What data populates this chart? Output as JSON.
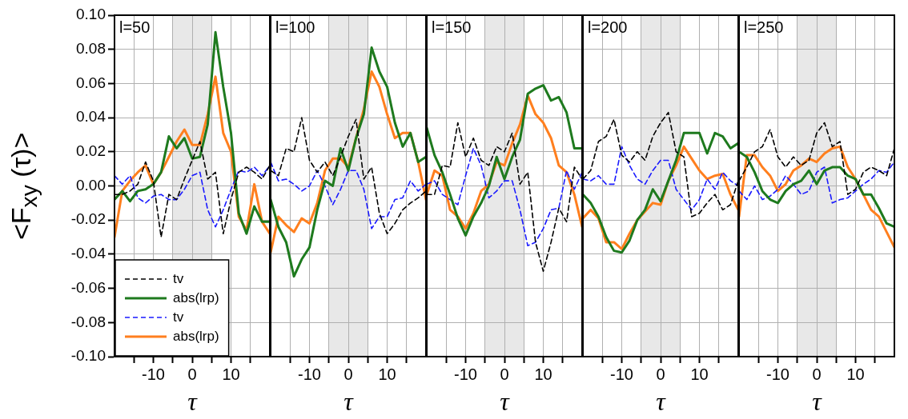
{
  "chart_data": [
    {
      "type": "line",
      "title": "l=50",
      "xlabel": "τ",
      "ylabel": "<F$_{xy}$ (τ)>",
      "xlim": [
        -20,
        20
      ],
      "xticks": [
        {
          "value": -15,
          "label": null
        },
        -10,
        {
          "value": -5,
          "label": null
        },
        0,
        {
          "value": 5,
          "label": null
        },
        10,
        {
          "value": 15,
          "label": null
        }
      ],
      "ylim": [
        -0.1,
        0.1
      ],
      "yticks": [
        {
          "value": -0.1,
          "label": "-0.10"
        },
        {
          "value": -0.08,
          "label": "-0.08"
        },
        {
          "value": -0.06,
          "label": "-0.06"
        },
        {
          "value": -0.04,
          "label": "-0.04"
        },
        {
          "value": -0.02,
          "label": "-0.02"
        },
        {
          "value": 0,
          "label": "0.00"
        },
        {
          "value": 0.02,
          "label": "0.02"
        },
        {
          "value": 0.04,
          "label": "0.04"
        },
        {
          "value": 0.06,
          "label": "0.06"
        },
        {
          "value": 0.08,
          "label": "0.08"
        },
        {
          "value": 0.1,
          "label": "0.10"
        }
      ],
      "grid": true,
      "legend": "bottom left",
      "bands": [
        {
          "axis": "x",
          "from": -5,
          "to": 5,
          "color": "#e8e8e8"
        }
      ],
      "x": [
        -20,
        -18,
        -16,
        -14,
        -12,
        -10,
        -8,
        -6,
        -4,
        -2,
        0,
        2,
        4,
        6,
        8,
        10,
        12,
        14,
        16,
        18,
        20
      ],
      "series": [
        {
          "name": "tv",
          "color": "#000000",
          "line_style": "dashed",
          "values": [
            -0.005,
            -0.005,
            -0.003,
            0.001,
            0.014,
            0.003,
            -0.03,
            -0.005,
            -0.008,
            0.004,
            0.015,
            0.026,
            0.004,
            0.008,
            -0.028,
            -0.008,
            0.008,
            0.011,
            0.008,
            0.004,
            0.012
          ]
        },
        {
          "name": "abs(lrp)",
          "color": "#1e7a1e",
          "line_style": "solid",
          "values": [
            -0.008,
            -0.003,
            -0.009,
            -0.003,
            -0.002,
            0.001,
            0.008,
            0.029,
            0.022,
            0.028,
            0.016,
            0.017,
            0.036,
            0.09,
            0.058,
            0.031,
            -0.016,
            -0.028,
            -0.012,
            -0.021,
            -0.021
          ]
        },
        {
          "name": "tv",
          "color": "#1a1aff",
          "line_style": "dashed",
          "values": [
            0.006,
            0.001,
            0.006,
            -0.007,
            -0.01,
            -0.006,
            -0.005,
            -0.008,
            -0.008,
            -0.002,
            0.006,
            0.008,
            -0.014,
            -0.024,
            -0.014,
            -0.002,
            0.009,
            0.008,
            0.011,
            0.006,
            0.012
          ]
        },
        {
          "name": "abs(lrp)",
          "color": "#ff7f1e",
          "line_style": "solid",
          "values": [
            -0.03,
            -0.003,
            0.003,
            0.008,
            0.012,
            0.001,
            0.008,
            0.017,
            0.026,
            0.033,
            0.024,
            0.024,
            0.042,
            0.064,
            0.031,
            0.02,
            -0.018,
            -0.026,
            0.001,
            -0.021,
            -0.028
          ]
        }
      ]
    },
    {
      "type": "line",
      "title": "l=100",
      "xlabel": "τ",
      "xlim": [
        -20,
        20
      ],
      "xticks": [
        {
          "value": -15,
          "label": null
        },
        -10,
        {
          "value": -5,
          "label": null
        },
        0,
        {
          "value": 5,
          "label": null
        },
        10,
        {
          "value": 15,
          "label": null
        }
      ],
      "ylim": [
        -0.1,
        0.1
      ],
      "yticks": [
        -0.1,
        -0.08,
        -0.06,
        -0.04,
        -0.02,
        0,
        0.02,
        0.04,
        0.06,
        0.08,
        0.1
      ],
      "tick_labels": "x",
      "grid": true,
      "bands": [
        {
          "axis": "x",
          "from": -5,
          "to": 5,
          "color": "#e8e8e8"
        }
      ],
      "x": [
        -20,
        -18,
        -16,
        -14,
        -12,
        -10,
        -8,
        -6,
        -4,
        -2,
        0,
        2,
        4,
        6,
        8,
        10,
        12,
        14,
        16,
        18,
        20
      ],
      "series": [
        {
          "color": "#000000",
          "line_style": "dashed",
          "values": [
            0.009,
            0.006,
            0.022,
            0.02,
            0.04,
            0.015,
            0.008,
            0.014,
            0.006,
            0.017,
            0.029,
            0.039,
            0.004,
            0.011,
            -0.016,
            -0.028,
            -0.022,
            -0.014,
            -0.01,
            -0.007,
            -0.003
          ]
        },
        {
          "color": "#1e7a1e",
          "line_style": "solid",
          "values": [
            -0.008,
            -0.024,
            -0.033,
            -0.053,
            -0.043,
            -0.036,
            -0.014,
            0.003,
            0,
            0.022,
            0.009,
            0.028,
            0.042,
            0.081,
            0.067,
            0.058,
            0.037,
            0.023,
            0.031,
            0.014,
            0.017
          ]
        },
        {
          "color": "#1a1aff",
          "line_style": "dashed",
          "values": [
            0.014,
            0.003,
            0.004,
            0.001,
            -0.003,
            0,
            0.009,
            0,
            -0.011,
            -0.002,
            0.009,
            0.009,
            -0.002,
            -0.025,
            -0.018,
            -0.018,
            -0.008,
            -0.007,
            0.003,
            -0.003,
            0.001
          ]
        },
        {
          "color": "#ff7f1e",
          "line_style": "solid",
          "values": [
            -0.039,
            -0.018,
            -0.023,
            -0.027,
            -0.019,
            -0.022,
            -0.01,
            0.009,
            0.016,
            0.016,
            0.011,
            0.028,
            0.045,
            0.067,
            0.058,
            0.042,
            0.028,
            0.031,
            0.031,
            0.014,
            -0.008
          ]
        }
      ]
    },
    {
      "type": "line",
      "title": "l=150",
      "xlabel": "τ",
      "xlim": [
        -20,
        20
      ],
      "xticks": [
        {
          "value": -15,
          "label": null
        },
        -10,
        {
          "value": -5,
          "label": null
        },
        0,
        {
          "value": 5,
          "label": null
        },
        10,
        {
          "value": 15,
          "label": null
        }
      ],
      "ylim": [
        -0.1,
        0.1
      ],
      "yticks": [
        -0.1,
        -0.08,
        -0.06,
        -0.04,
        -0.02,
        0,
        0.02,
        0.04,
        0.06,
        0.08,
        0.1
      ],
      "tick_labels": "x",
      "grid": true,
      "bands": [
        {
          "axis": "x",
          "from": -5,
          "to": 5,
          "color": "#e8e8e8"
        }
      ],
      "x": [
        -20,
        -18,
        -16,
        -14,
        -12,
        -10,
        -8,
        -6,
        -4,
        -2,
        0,
        2,
        4,
        6,
        8,
        10,
        12,
        14,
        16,
        18,
        20
      ],
      "series": [
        {
          "color": "#000000",
          "line_style": "dashed",
          "values": [
            -0.005,
            -0.005,
            0.012,
            0.011,
            0.037,
            0.017,
            0.028,
            0.015,
            0.012,
            0.023,
            0.02,
            0.031,
            0.001,
            0.008,
            -0.033,
            -0.05,
            -0.033,
            -0.013,
            -0.021,
            0.011,
            0.004
          ]
        },
        {
          "color": "#1e7a1e",
          "line_style": "solid",
          "values": [
            0.034,
            0.018,
            0.008,
            -0.005,
            -0.019,
            -0.029,
            -0.018,
            -0.01,
            0,
            0.017,
            0.004,
            0.017,
            0.027,
            0.054,
            0.057,
            0.059,
            0.05,
            0.052,
            0.043,
            0.022,
            0.022
          ]
        },
        {
          "color": "#1a1aff",
          "line_style": "dashed",
          "values": [
            0.001,
            0.003,
            -0.005,
            -0.008,
            -0.011,
            0.006,
            0.022,
            0.012,
            -0.007,
            -0.003,
            0.003,
            0.003,
            -0.014,
            -0.035,
            -0.033,
            -0.025,
            -0.014,
            -0.013,
            0.009,
            -0.002,
            0.008
          ]
        },
        {
          "color": "#ff7f1e",
          "line_style": "solid",
          "values": [
            -0.005,
            0.009,
            0.006,
            -0.014,
            -0.018,
            -0.025,
            -0.016,
            -0.003,
            0.001,
            0.014,
            0.012,
            0.025,
            0.036,
            0.053,
            0.042,
            0.037,
            0.028,
            0.012,
            0.008,
            -0.005,
            -0.024
          ]
        }
      ]
    },
    {
      "type": "line",
      "title": "l=200",
      "xlabel": "τ",
      "xlim": [
        -20,
        20
      ],
      "xticks": [
        {
          "value": -15,
          "label": null
        },
        -10,
        {
          "value": -5,
          "label": null
        },
        0,
        {
          "value": 5,
          "label": null
        },
        10,
        {
          "value": 15,
          "label": null
        }
      ],
      "ylim": [
        -0.1,
        0.1
      ],
      "yticks": [
        -0.1,
        -0.08,
        -0.06,
        -0.04,
        -0.02,
        0,
        0.02,
        0.04,
        0.06,
        0.08,
        0.1
      ],
      "tick_labels": "x",
      "grid": true,
      "bands": [
        {
          "axis": "x",
          "from": -5,
          "to": 5,
          "color": "#e8e8e8"
        }
      ],
      "x": [
        -20,
        -18,
        -16,
        -14,
        -12,
        -10,
        -8,
        -6,
        -4,
        -2,
        0,
        2,
        4,
        6,
        8,
        10,
        12,
        14,
        16,
        18,
        20
      ],
      "series": [
        {
          "color": "#000000",
          "line_style": "dashed",
          "values": [
            0.004,
            0.009,
            0.026,
            0.029,
            0.039,
            0.018,
            0.014,
            0.02,
            0.015,
            0.029,
            0.037,
            0.043,
            0.02,
            0.017,
            -0.018,
            -0.016,
            -0.01,
            -0.005,
            -0.014,
            -0.011,
            0.003
          ]
        },
        {
          "color": "#1e7a1e",
          "line_style": "solid",
          "values": [
            -0.005,
            -0.01,
            -0.018,
            -0.03,
            -0.038,
            -0.039,
            -0.032,
            -0.02,
            -0.014,
            -0.002,
            -0.009,
            0.003,
            0.015,
            0.031,
            0.031,
            0.031,
            0.019,
            0.031,
            0.029,
            0.022,
            0.025
          ]
        },
        {
          "color": "#1a1aff",
          "line_style": "dashed",
          "values": [
            0.004,
            0.003,
            0.006,
            0.001,
            0.001,
            0.023,
            0.012,
            0.004,
            0.001,
            0.009,
            0.015,
            0.015,
            -0.002,
            -0.008,
            -0.014,
            -0.008,
            0.004,
            -0.002,
            0.008,
            0.003,
            0
          ]
        },
        {
          "color": "#ff7f1e",
          "line_style": "solid",
          "values": [
            -0.019,
            -0.014,
            -0.019,
            -0.033,
            -0.033,
            -0.037,
            -0.028,
            -0.02,
            -0.015,
            -0.01,
            -0.011,
            0.003,
            0.012,
            0.023,
            0.016,
            0.009,
            0.004,
            0.006,
            0.007,
            -0.005,
            -0.014
          ]
        }
      ]
    },
    {
      "type": "line",
      "title": "l=250",
      "xlabel": "τ",
      "xlim": [
        -20,
        20
      ],
      "xticks": [
        {
          "value": -15,
          "label": null
        },
        -10,
        {
          "value": -5,
          "label": null
        },
        0,
        {
          "value": 5,
          "label": null
        },
        10,
        {
          "value": 15,
          "label": null
        }
      ],
      "ylim": [
        -0.1,
        0.1
      ],
      "yticks": [
        -0.1,
        -0.08,
        -0.06,
        -0.04,
        -0.02,
        0,
        0.02,
        0.04,
        0.06,
        0.08,
        0.1
      ],
      "tick_labels": "x",
      "grid": true,
      "bands": [
        {
          "axis": "x",
          "from": -5,
          "to": 5,
          "color": "#e8e8e8"
        }
      ],
      "x": [
        -20,
        -18,
        -16,
        -14,
        -12,
        -10,
        -8,
        -6,
        -4,
        -2,
        0,
        2,
        4,
        6,
        8,
        10,
        12,
        14,
        16,
        18,
        20
      ],
      "series": [
        {
          "color": "#000000",
          "line_style": "dashed",
          "values": [
            0.003,
            0.011,
            0.02,
            0.023,
            0.033,
            0.017,
            0.011,
            0.017,
            0.012,
            0.015,
            0.031,
            0.037,
            0.023,
            0.026,
            -0.005,
            -0.002,
            0.008,
            0.011,
            0.009,
            0.006,
            0.022
          ]
        },
        {
          "color": "#1e7a1e",
          "line_style": "solid",
          "values": [
            0.02,
            0.017,
            0.008,
            -0.003,
            -0.008,
            -0.01,
            -0.003,
            0.001,
            0.003,
            0.009,
            0.001,
            0.009,
            0.011,
            0.011,
            0.006,
            0.004,
            -0.005,
            -0.005,
            -0.013,
            -0.022,
            -0.024
          ]
        },
        {
          "color": "#1a1aff",
          "line_style": "dashed",
          "values": [
            -0.003,
            -0.008,
            0,
            -0.008,
            -0.006,
            -0.002,
            0.006,
            0.001,
            -0.005,
            -0.003,
            0.008,
            0.011,
            -0.01,
            -0.008,
            -0.007,
            -0.003,
            0.001,
            0.004,
            0.009,
            0.008,
            0.014
          ]
        },
        {
          "color": "#ff7f1e",
          "line_style": "solid",
          "values": [
            -0.018,
            0.018,
            0.018,
            0.011,
            0.006,
            -0.003,
            0.001,
            0.009,
            0.012,
            0.016,
            0.014,
            0.019,
            0.022,
            0.023,
            0.011,
            0.004,
            -0.005,
            -0.014,
            -0.018,
            -0.027,
            -0.036
          ]
        }
      ]
    }
  ]
}
